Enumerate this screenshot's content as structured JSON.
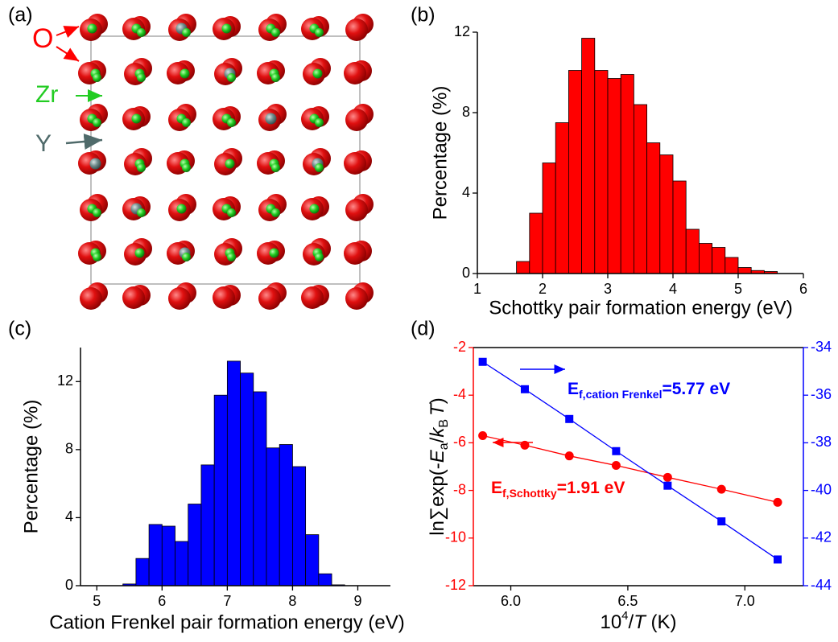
{
  "panel_a": {
    "label": "(a)",
    "atoms": [
      "O",
      "Zr",
      "Y"
    ]
  },
  "chart_data": [
    {
      "type": "histogram",
      "label": "(b)",
      "xlabel": "Schottky pair formation energy (eV)",
      "ylabel": "Percentage (%)",
      "bins": [
        1.6,
        1.8,
        2.0,
        2.2,
        2.4,
        2.6,
        2.8,
        3.0,
        3.2,
        3.4,
        3.6,
        3.8,
        4.0,
        4.2,
        4.4,
        4.6,
        4.8,
        5.0,
        5.2,
        5.4,
        5.6
      ],
      "values": [
        0.6,
        3.0,
        5.5,
        7.5,
        10.1,
        11.7,
        10.1,
        9.7,
        9.9,
        8.4,
        6.5,
        5.9,
        4.6,
        2.2,
        1.5,
        1.3,
        0.8,
        0.3,
        0.15,
        0.1
      ],
      "color": "#ff0000",
      "xlim": [
        1,
        6
      ],
      "xticks": [
        1,
        2,
        3,
        4,
        5,
        6
      ],
      "ylim": [
        0,
        12
      ],
      "yticks": [
        0,
        4,
        8,
        12
      ]
    },
    {
      "type": "histogram",
      "label": "(c)",
      "xlabel": "Cation Frenkel pair formation energy (eV)",
      "ylabel": "Percentage (%)",
      "bins": [
        5.4,
        5.6,
        5.8,
        6.0,
        6.2,
        6.4,
        6.6,
        6.8,
        7.0,
        7.2,
        7.4,
        7.6,
        7.8,
        8.0,
        8.2,
        8.4,
        8.6,
        8.8
      ],
      "values": [
        0.1,
        1.6,
        3.6,
        3.5,
        2.6,
        4.8,
        7.1,
        11.2,
        13.2,
        12.5,
        11.4,
        8.1,
        8.3,
        7.0,
        3.0,
        0.7,
        0.05
      ],
      "color": "#0000ff",
      "xlim": [
        4.75,
        9.5
      ],
      "xticks": [
        5,
        6,
        7,
        8,
        9
      ],
      "ylim": [
        0,
        14
      ],
      "yticks": [
        0,
        4,
        8,
        12
      ]
    },
    {
      "type": "line",
      "label": "(d)",
      "xlabel": [
        "10",
        "4",
        "/",
        "T",
        " (K)"
      ],
      "ylabel": [
        "ln∑exp(-",
        "E",
        "a",
        "/",
        "k",
        "B",
        "T",
        ")"
      ],
      "x": [
        5.88,
        6.06,
        6.25,
        6.45,
        6.67,
        6.9,
        7.14
      ],
      "series": [
        {
          "color": "#ff0000",
          "marker": "circle",
          "values": [
            -5.7,
            -6.1,
            -6.55,
            -6.95,
            -7.45,
            -7.95,
            -8.5
          ]
        },
        {
          "color": "#0000ff",
          "marker": "square",
          "axis": "y2",
          "values": [
            -34.6,
            -35.75,
            -37.0,
            -38.35,
            -39.8,
            -41.3,
            -42.9
          ]
        }
      ],
      "annotations": [
        {
          "text": [
            "E",
            "f,cation Frenkel",
            "=5.77 eV"
          ],
          "color": "#0000ff"
        },
        {
          "text": [
            "E",
            "f,Schottky",
            "=1.91 eV"
          ],
          "color": "#ff0000"
        }
      ],
      "xlim": [
        5.84,
        7.25
      ],
      "xticks": [
        {
          "value": 6,
          "label": "6.0"
        },
        {
          "value": 6.5,
          "label": "6.5"
        },
        {
          "value": 7,
          "label": "7.0"
        }
      ],
      "ylim": [
        -12,
        -2
      ],
      "yticks": [
        -2,
        -4,
        -6,
        -8,
        -10,
        -12
      ],
      "y2lim": [
        -44,
        -34
      ],
      "y2ticks": [
        -34,
        -36,
        -38,
        -40,
        -42,
        -44
      ]
    }
  ]
}
